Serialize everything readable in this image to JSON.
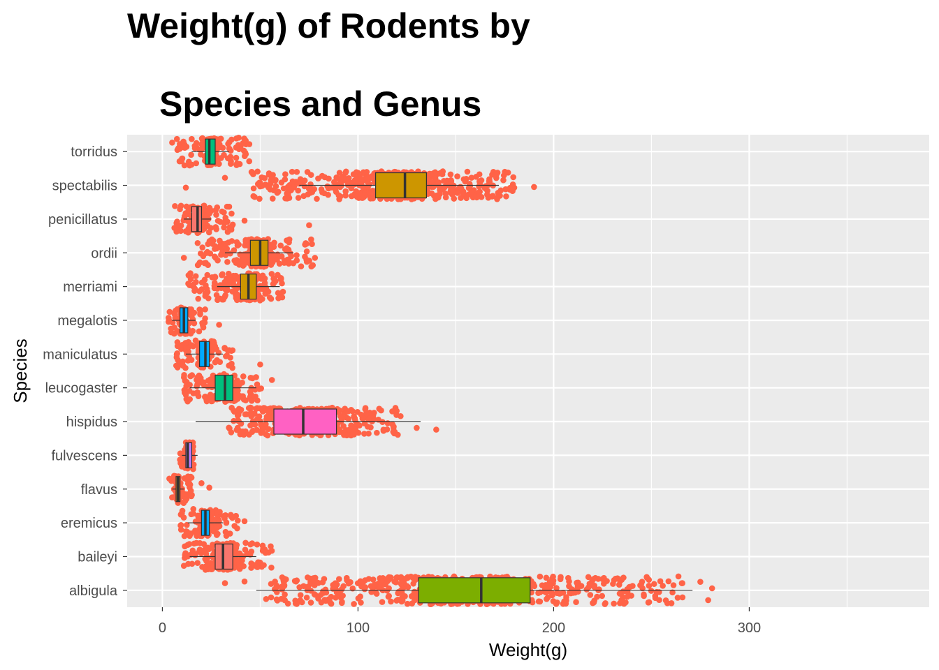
{
  "title": {
    "line1": "Weight(g) of Rodents by",
    "line2": "Species and Genus"
  },
  "colors": {
    "panel_bg": "#EBEBEB",
    "grid": "#FFFFFF",
    "points": "#FF6347",
    "box_outline": "#333333",
    "axis_text": "#4D4D4D"
  },
  "chart_data": {
    "type": "boxplot",
    "title": "Weight(g) of Rodents by Species and Genus",
    "xlabel": "Weight(g)",
    "ylabel": "Species",
    "xlim": [
      -18,
      392
    ],
    "x_ticks": [
      0,
      100,
      200,
      300
    ],
    "grid": true,
    "legend": "none",
    "series": [
      {
        "species": "torridus",
        "whisker_low": 15,
        "q1": 22,
        "median": 24,
        "q3": 27,
        "whisker_high": 34,
        "fill": "#00BF7D",
        "jitter_range": [
          7,
          46
        ],
        "extra_points": [
          5
        ]
      },
      {
        "species": "spectabilis",
        "whisker_low": 70,
        "q1": 109,
        "median": 124,
        "q3": 135,
        "whisker_high": 172,
        "fill": "#CD9600",
        "jitter_range": [
          44,
          180
        ],
        "extra_points": [
          12,
          32,
          50,
          179,
          190,
          173
        ]
      },
      {
        "species": "penicillatus",
        "whisker_low": 11,
        "q1": 15,
        "median": 18,
        "q3": 20,
        "whisker_high": 25,
        "fill": "#F8766D",
        "jitter_range": [
          6,
          36
        ],
        "extra_points": [
          42,
          75
        ]
      },
      {
        "species": "ordii",
        "whisker_low": 32,
        "q1": 45,
        "median": 50,
        "q3": 54,
        "whisker_high": 67,
        "fill": "#CD9600",
        "jitter_range": [
          18,
          77
        ],
        "extra_points": [
          11,
          78
        ]
      },
      {
        "species": "merriami",
        "whisker_low": 28,
        "q1": 40,
        "median": 44,
        "q3": 48,
        "whisker_high": 60,
        "fill": "#CD9600",
        "jitter_range": [
          13,
          63
        ],
        "extra_points": []
      },
      {
        "species": "megalotis",
        "whisker_low": 5,
        "q1": 9,
        "median": 11,
        "q3": 13,
        "whisker_high": 17,
        "fill": "#00A9FF",
        "jitter_range": [
          3,
          22
        ],
        "extra_points": [
          29
        ]
      },
      {
        "species": "maniculatus",
        "whisker_low": 12,
        "q1": 19,
        "median": 22,
        "q3": 24,
        "whisker_high": 31,
        "fill": "#00A9FF",
        "jitter_range": [
          7,
          36
        ],
        "extra_points": [
          50
        ]
      },
      {
        "species": "leucogaster",
        "whisker_low": 14,
        "q1": 27,
        "median": 32,
        "q3": 36,
        "whisker_high": 48,
        "fill": "#00BF7D",
        "jitter_range": [
          11,
          51
        ],
        "extra_points": [
          56
        ]
      },
      {
        "species": "hispidus",
        "whisker_low": 17,
        "q1": 57,
        "median": 72,
        "q3": 89,
        "whisker_high": 132,
        "fill": "#FF61C3",
        "jitter_range": [
          34,
          122
        ],
        "extra_points": [
          140,
          130,
          118
        ]
      },
      {
        "species": "fulvescens",
        "whisker_low": 10,
        "q1": 12,
        "median": 13,
        "q3": 15,
        "whisker_high": 18,
        "fill": "#C77CFF",
        "jitter_range": [
          9,
          16
        ],
        "extra_points": []
      },
      {
        "species": "flavus",
        "whisker_low": 5,
        "q1": 7,
        "median": 8,
        "q3": 9,
        "whisker_high": 11,
        "fill": "#E7861B",
        "jitter_range": [
          3,
          16
        ],
        "extra_points": [
          24,
          20
        ]
      },
      {
        "species": "eremicus",
        "whisker_low": 13,
        "q1": 20,
        "median": 22,
        "q3": 24,
        "whisker_high": 31,
        "fill": "#00A9FF",
        "jitter_range": [
          9,
          39
        ],
        "extra_points": [
          42
        ]
      },
      {
        "species": "baileyi",
        "whisker_low": 14,
        "q1": 27,
        "median": 31,
        "q3": 36,
        "whisker_high": 48,
        "fill": "#F8766D",
        "jitter_range": [
          11,
          56
        ],
        "extra_points": []
      },
      {
        "species": "albigula",
        "whisker_low": 48,
        "q1": 131,
        "median": 163,
        "q3": 188,
        "whisker_high": 271,
        "fill": "#7CAE00",
        "jitter_range": [
          52,
          268
        ],
        "extra_points": [
          32,
          275,
          281,
          279,
          42
        ]
      }
    ]
  }
}
